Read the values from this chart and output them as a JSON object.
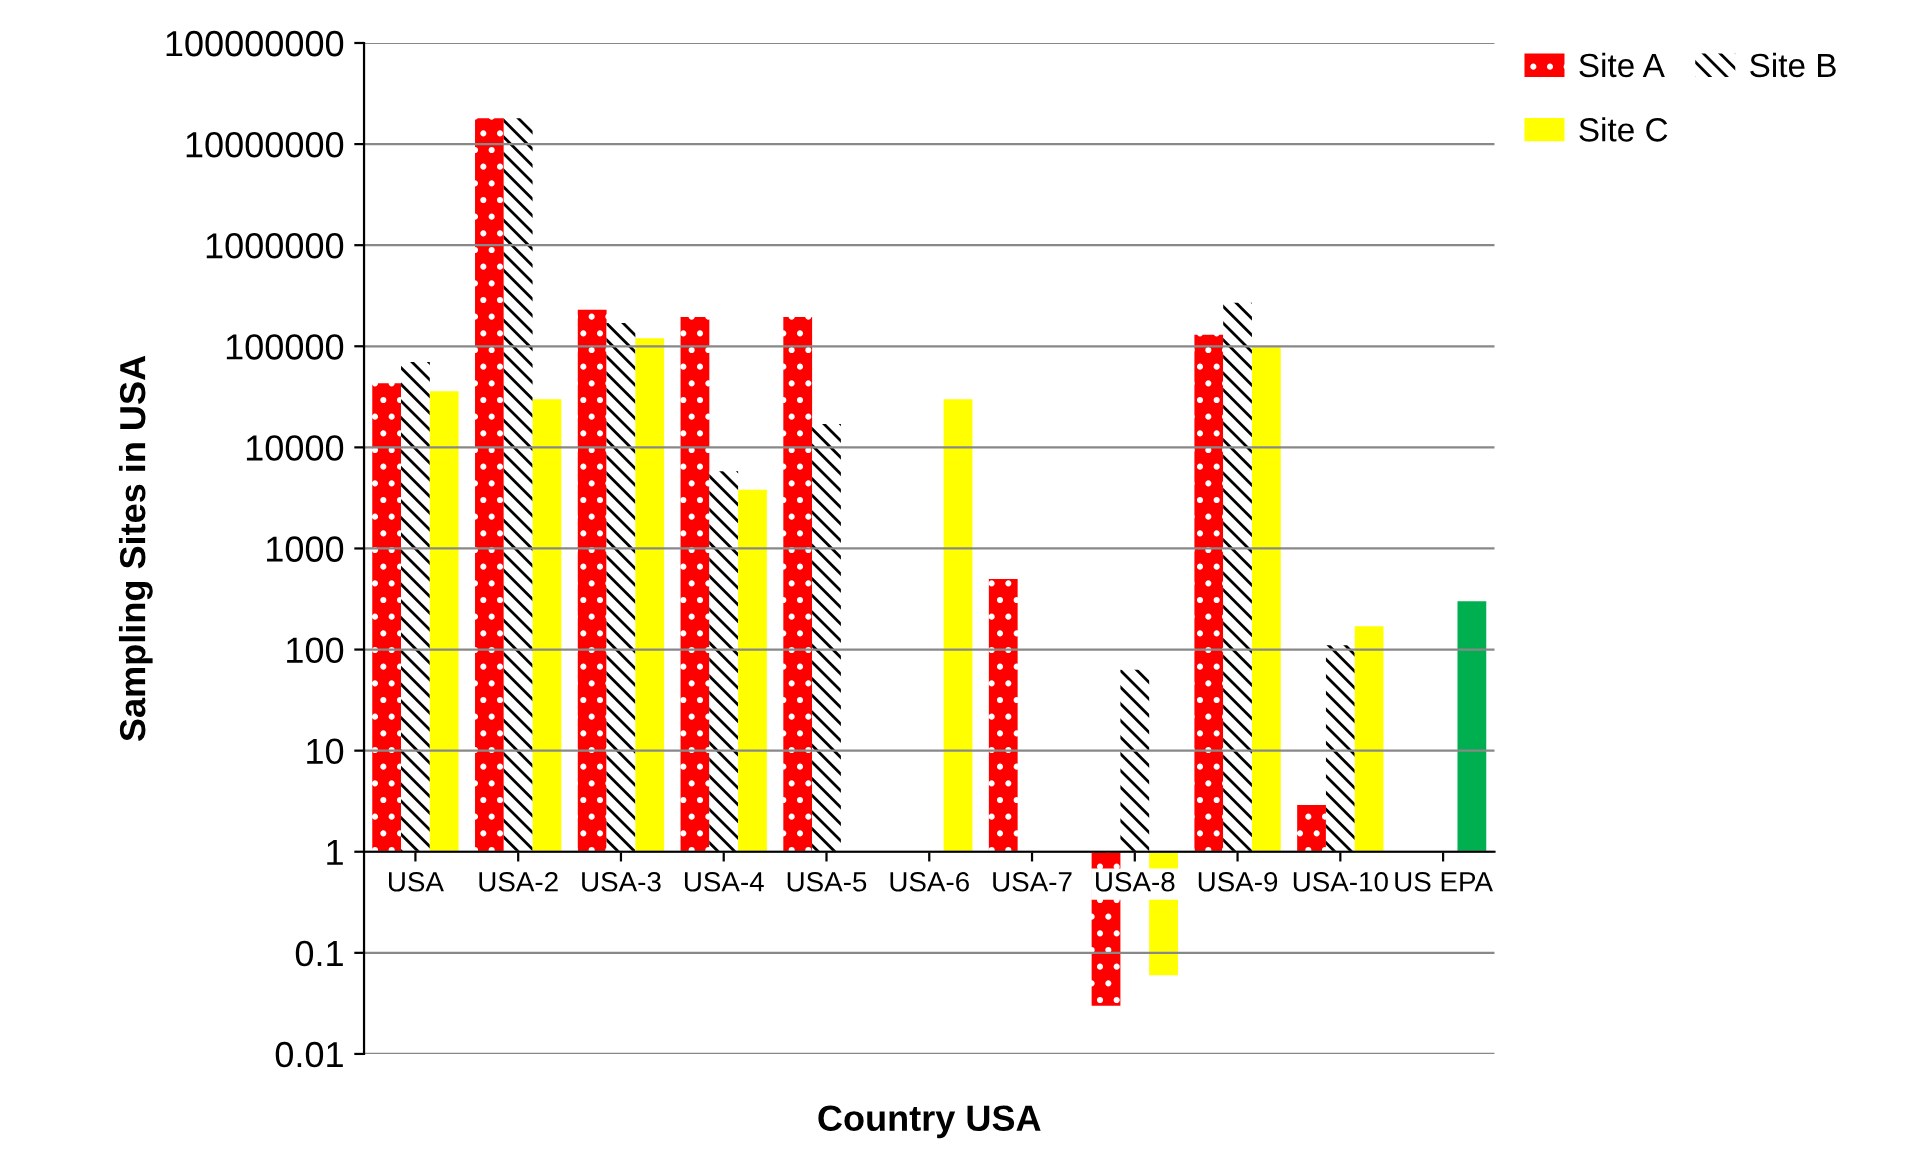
{
  "chart_data": {
    "type": "bar",
    "xlabel": "Country USA",
    "ylabel": "Sampling Sites in USA",
    "categories": [
      "USA",
      "USA-2",
      "USA-3",
      "USA-4",
      "USA-5",
      "USA-6",
      "USA-7",
      "USA-8",
      "USA-9",
      "USA-10",
      "US EPA"
    ],
    "series": [
      {
        "name": "Site A",
        "color": "#ff0000",
        "base": [
          1,
          1,
          1,
          1,
          1,
          null,
          1,
          1,
          1,
          1,
          null
        ],
        "values": [
          42999,
          17999999,
          229999,
          194999,
          194999,
          null,
          499,
          -0.97,
          129999,
          1.9,
          null
        ]
      },
      {
        "name": "Site B",
        "color": "#000000",
        "base": [
          1,
          1,
          1,
          1,
          1,
          null,
          null,
          1,
          1,
          1,
          null
        ],
        "values": [
          69999,
          17999999,
          169999,
          5799,
          16999,
          null,
          null,
          62,
          269999,
          109,
          null
        ]
      },
      {
        "name": "Site C",
        "color": "#ffff00",
        "colors": [
          "#ffff00",
          "#ffff00",
          "#ffff00",
          "#ffff00",
          "#ffff00",
          "#ffff00",
          "#ffff00",
          "#ffff00",
          "#ffff00",
          "#ffff00",
          "#00b050"
        ],
        "base": [
          1,
          1,
          1,
          1,
          null,
          1,
          null,
          1,
          1,
          1,
          1
        ],
        "values": [
          35999,
          29999,
          119999,
          3799,
          null,
          29999,
          null,
          -0.94,
          97999,
          169,
          299
        ]
      }
    ],
    "log": "y",
    "ylim": [
      0.01,
      100000000
    ],
    "yticks": [
      {
        "value": 0.01,
        "label": "0.01"
      },
      {
        "value": 0.1,
        "label": "0.1"
      },
      1,
      10,
      100,
      1000,
      10000,
      100000,
      1000000,
      10000000,
      100000000
    ],
    "grid": "y",
    "legend": "top right"
  }
}
